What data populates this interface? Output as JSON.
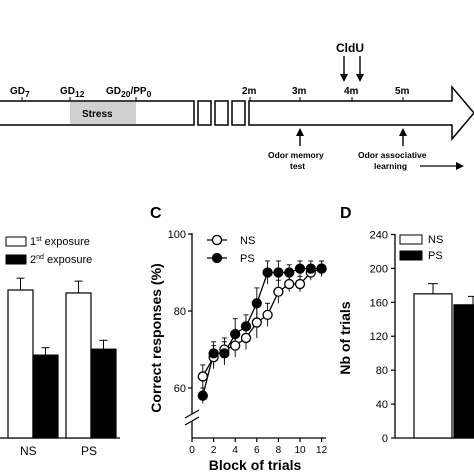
{
  "timeline": {
    "labels": [
      "GD",
      "7",
      "GD",
      "12",
      "GD",
      "20",
      "/PP",
      "0",
      "2m",
      "3m",
      "4m",
      "5m"
    ],
    "stress_label": "Stress",
    "cldu_label": "CldU",
    "odor_memory_label": [
      "Odor memory",
      "test"
    ],
    "odor_assoc_label": [
      "Odor associative",
      "learning"
    ]
  },
  "panelB": {
    "legend": [
      {
        "pre": "1",
        "sup": "st",
        "post": " exposure",
        "fill": "#ffffff"
      },
      {
        "pre": "2",
        "sup": "nd",
        "post": " exposure",
        "fill": "#000000"
      }
    ],
    "groups": [
      "NS",
      "PS"
    ],
    "star": "*",
    "chart_data": {
      "type": "bar",
      "categories": [
        "NS",
        "PS"
      ],
      "series": [
        {
          "name": "1st exposure",
          "values": [
            100,
            98
          ]
        },
        {
          "name": "2nd exposure",
          "values": [
            56,
            60
          ]
        }
      ],
      "errors": [
        [
          8,
          8
        ],
        [
          5,
          6
        ]
      ],
      "note": "relative units; y-axis not visible"
    }
  },
  "panelC": {
    "letter": "C",
    "ylabel": "Correct responses (%)",
    "xlabel": "Block of trials",
    "yticks": [
      "100",
      "80",
      "60"
    ],
    "xticks": [
      "0",
      "2",
      "4",
      "6",
      "8",
      "10",
      "12"
    ],
    "legend": [
      "NS",
      "PS"
    ],
    "chart_data": {
      "type": "line",
      "x": [
        1,
        2,
        3,
        4,
        5,
        6,
        7,
        8,
        9,
        10,
        11,
        12
      ],
      "series": [
        {
          "name": "NS",
          "marker": "open",
          "values": [
            63,
            68,
            70,
            71,
            73,
            77,
            79,
            85,
            87,
            87,
            90,
            91
          ]
        },
        {
          "name": "PS",
          "marker": "filled",
          "values": [
            58,
            69,
            69,
            74,
            76,
            82,
            90,
            90,
            90,
            91,
            91,
            91
          ]
        }
      ],
      "yerr_NS": [
        3,
        3,
        3,
        3,
        3,
        4,
        3,
        3,
        2,
        2,
        2,
        2
      ],
      "yerr_PS": [
        2,
        3,
        3,
        4,
        3,
        4,
        3,
        3,
        2,
        2,
        2,
        2
      ],
      "ylim": [
        50,
        100
      ],
      "xlim": [
        0,
        12
      ]
    }
  },
  "panelD": {
    "letter": "D",
    "ylabel": "Nb of trials",
    "yticks": [
      "240",
      "200",
      "160",
      "120",
      "80",
      "40",
      "0"
    ],
    "legend": [
      "NS",
      "PS"
    ],
    "chart_data": {
      "type": "bar",
      "categories": [
        "NS",
        "PS"
      ],
      "values": [
        170,
        157
      ],
      "errors": [
        12,
        10
      ],
      "ylim": [
        0,
        240
      ]
    }
  }
}
